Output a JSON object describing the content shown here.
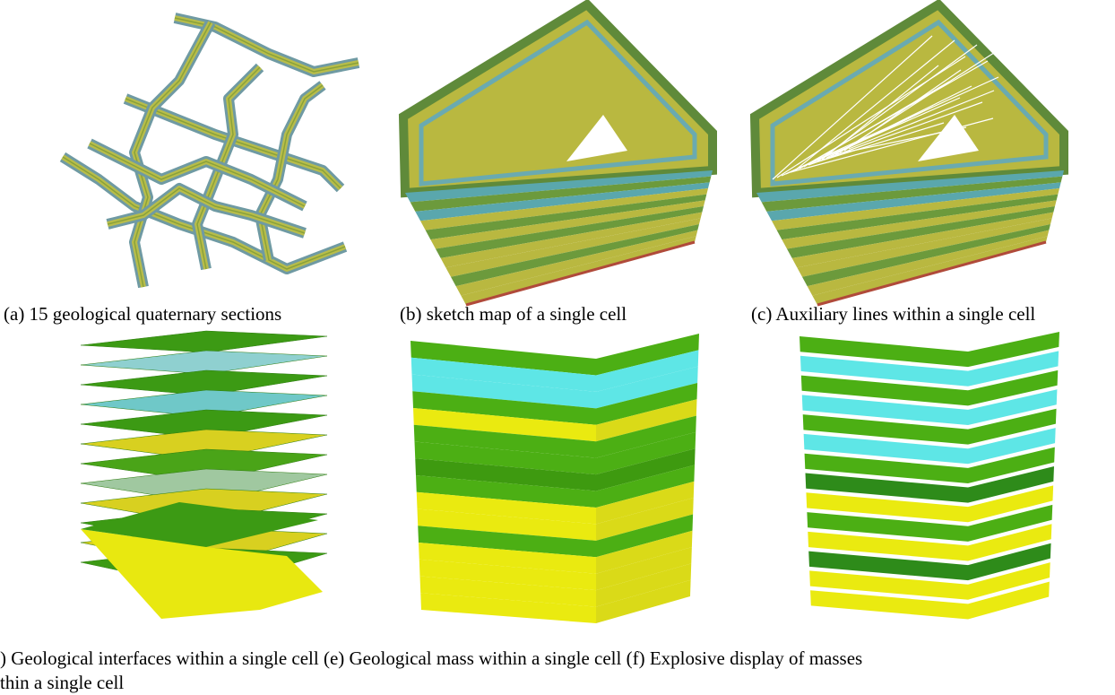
{
  "panels": [
    {
      "caption": "(a) 15 geological quaternary sections"
    },
    {
      "caption": "(b) sketch map of a single cell"
    },
    {
      "caption": "(c) Auxiliary lines within a single cell"
    }
  ],
  "bottom_caption": {
    "lines": [
      ") Geological interfaces within a single cell (e) Geological mass within a single cell (f) Explosive display of masses",
      "thin a single cell"
    ]
  }
}
